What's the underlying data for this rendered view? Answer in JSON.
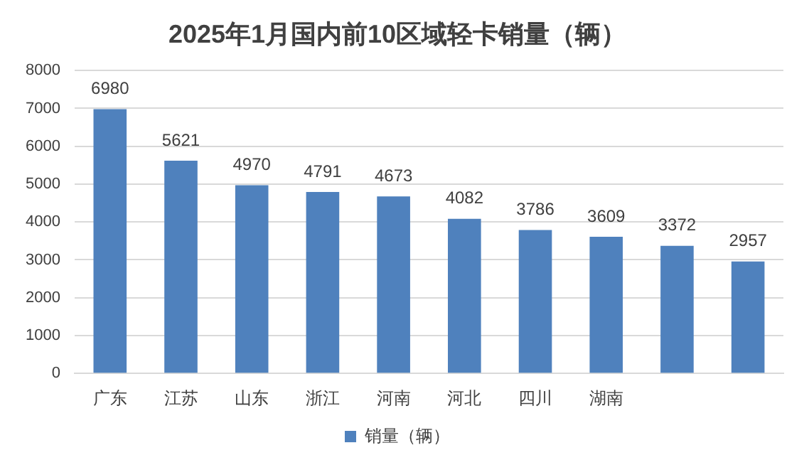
{
  "chart_data": {
    "type": "bar",
    "title": "2025年1月国内前10区域轻卡销量（辆）",
    "categories": [
      "广东",
      "江苏",
      "山东",
      "浙江",
      "河南",
      "河北",
      "四川",
      "湖南",
      null,
      null
    ],
    "series": [
      {
        "name": "销量（辆）",
        "color": "#4f81bd",
        "values": [
          6980,
          5621,
          4970,
          4791,
          4673,
          4082,
          3786,
          3609,
          3372,
          2957
        ]
      }
    ],
    "ylim": [
      0,
      8000
    ],
    "yticks": [
      0,
      1000,
      2000,
      3000,
      4000,
      5000,
      6000,
      7000,
      8000
    ],
    "grid": "y",
    "legend": "bottom",
    "data_labels": true
  }
}
